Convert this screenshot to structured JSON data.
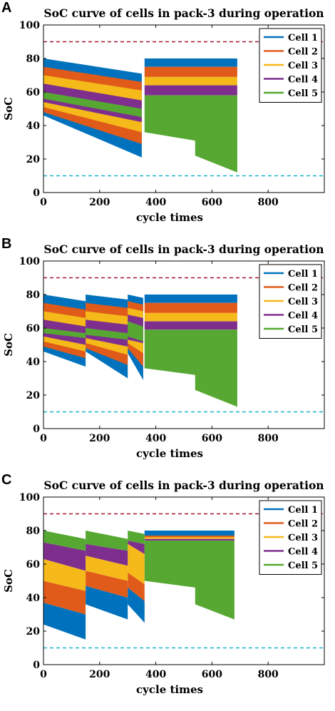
{
  "chart_data": [
    {
      "panel": "A",
      "type": "area",
      "title": "SoC curve of cells in pack-3 during operation",
      "xlabel": "cycle times",
      "ylabel": "SoC",
      "xlim": [
        0,
        1000
      ],
      "ylim": [
        0,
        100
      ],
      "xticks": [
        0,
        200,
        400,
        600,
        800
      ],
      "yticks": [
        0,
        20,
        40,
        60,
        80,
        100
      ],
      "reference_lines": [
        {
          "y": 90,
          "color": "#a2142f",
          "style": "dashed"
        },
        {
          "y": 10,
          "color": "#18b4c8",
          "style": "dashed"
        }
      ],
      "legend_position": "top-right",
      "series": [
        {
          "name": "Cell 1",
          "color": "#0072bd",
          "segments": [
            {
              "x0": 0,
              "x1": 350,
              "upper": [
                80,
                71
              ],
              "lower": [
                46,
                21
              ]
            },
            {
              "x0": 360,
              "x1": 690,
              "upper": [
                80,
                80
              ],
              "lower": [
                75,
                75
              ]
            }
          ]
        },
        {
          "name": "Cell 2",
          "color": "#e05b1a",
          "segments": [
            {
              "x0": 0,
              "x1": 350,
              "upper": [
                75,
                66
              ],
              "lower": [
                48,
                29
              ]
            },
            {
              "x0": 360,
              "x1": 690,
              "upper": [
                75,
                75
              ],
              "lower": [
                69,
                69
              ]
            }
          ]
        },
        {
          "name": "Cell 3",
          "color": "#f5b91a",
          "segments": [
            {
              "x0": 0,
              "x1": 350,
              "upper": [
                70,
                61
              ],
              "lower": [
                51,
                36
              ]
            },
            {
              "x0": 360,
              "x1": 690,
              "upper": [
                69,
                69
              ],
              "lower": [
                64,
                64
              ]
            }
          ]
        },
        {
          "name": "Cell 4",
          "color": "#7e2f8e",
          "segments": [
            {
              "x0": 0,
              "x1": 350,
              "upper": [
                65,
                55
              ],
              "lower": [
                54,
                42
              ]
            },
            {
              "x0": 360,
              "x1": 690,
              "upper": [
                64,
                64
              ],
              "lower": [
                58,
                58
              ]
            }
          ]
        },
        {
          "name": "Cell 5",
          "color": "#56a832",
          "segments": [
            {
              "x0": 0,
              "x1": 350,
              "upper": [
                60,
                50
              ],
              "lower": [
                56,
                45
              ]
            },
            {
              "x0": 360,
              "x1": 690,
              "upper": [
                58,
                58
              ],
              "lower": [
                36,
                12
              ],
              "lower_points": [
                [
                  360,
                  36
                ],
                [
                  540,
                  31
                ],
                [
                  540,
                  22
                ],
                [
                  690,
                  12
                ]
              ]
            }
          ]
        }
      ]
    },
    {
      "panel": "B",
      "type": "area",
      "title": "SoC curve of cells in pack-3 during operation",
      "xlabel": "cycle times",
      "ylabel": "SoC",
      "xlim": [
        0,
        1000
      ],
      "ylim": [
        0,
        100
      ],
      "xticks": [
        0,
        200,
        400,
        600,
        800
      ],
      "yticks": [
        0,
        20,
        40,
        60,
        80,
        100
      ],
      "reference_lines": [
        {
          "y": 90,
          "color": "#a2142f",
          "style": "dashed"
        },
        {
          "y": 10,
          "color": "#18b4c8",
          "style": "dashed"
        }
      ],
      "legend_position": "top-right",
      "series": [
        {
          "name": "Cell 1",
          "color": "#0072bd",
          "segments": [
            {
              "x0": 0,
              "x1": 150,
              "upper": [
                80,
                76
              ],
              "lower": [
                46,
                37
              ]
            },
            {
              "x0": 150,
              "x1": 300,
              "upper": [
                80,
                77
              ],
              "lower": [
                46,
                30
              ]
            },
            {
              "x0": 300,
              "x1": 355,
              "upper": [
                80,
                78
              ],
              "lower": [
                45,
                29
              ]
            },
            {
              "x0": 360,
              "x1": 690,
              "upper": [
                80,
                80
              ],
              "lower": [
                75,
                75
              ]
            }
          ]
        },
        {
          "name": "Cell 2",
          "color": "#e05b1a",
          "segments": [
            {
              "x0": 0,
              "x1": 150,
              "upper": [
                75,
                71
              ],
              "lower": [
                49,
                42
              ]
            },
            {
              "x0": 150,
              "x1": 300,
              "upper": [
                75,
                72
              ],
              "lower": [
                48,
                38
              ]
            },
            {
              "x0": 300,
              "x1": 355,
              "upper": [
                76,
                74
              ],
              "lower": [
                48,
                37
              ]
            },
            {
              "x0": 360,
              "x1": 690,
              "upper": [
                75,
                75
              ],
              "lower": [
                69,
                69
              ]
            }
          ]
        },
        {
          "name": "Cell 3",
          "color": "#f5b91a",
          "segments": [
            {
              "x0": 0,
              "x1": 150,
              "upper": [
                70,
                66
              ],
              "lower": [
                52,
                46
              ]
            },
            {
              "x0": 150,
              "x1": 300,
              "upper": [
                70,
                67
              ],
              "lower": [
                51,
                44
              ]
            },
            {
              "x0": 300,
              "x1": 355,
              "upper": [
                72,
                70
              ],
              "lower": [
                51,
                45
              ]
            },
            {
              "x0": 360,
              "x1": 690,
              "upper": [
                69,
                69
              ],
              "lower": [
                64,
                64
              ]
            }
          ]
        },
        {
          "name": "Cell 4",
          "color": "#7e2f8e",
          "segments": [
            {
              "x0": 0,
              "x1": 150,
              "upper": [
                65,
                61
              ],
              "lower": [
                55,
                50
              ]
            },
            {
              "x0": 150,
              "x1": 300,
              "upper": [
                65,
                62
              ],
              "lower": [
                54,
                49
              ]
            },
            {
              "x0": 300,
              "x1": 355,
              "upper": [
                68,
                66
              ],
              "lower": [
                53,
                51
              ]
            },
            {
              "x0": 360,
              "x1": 690,
              "upper": [
                64,
                64
              ],
              "lower": [
                59,
                59
              ]
            }
          ]
        },
        {
          "name": "Cell 5",
          "color": "#56a832",
          "segments": [
            {
              "x0": 0,
              "x1": 150,
              "upper": [
                60,
                57
              ],
              "lower": [
                57,
                54
              ]
            },
            {
              "x0": 150,
              "x1": 300,
              "upper": [
                60,
                57
              ],
              "lower": [
                56,
                53
              ]
            },
            {
              "x0": 300,
              "x1": 355,
              "upper": [
                64,
                61
              ],
              "lower": [
                55,
                52
              ]
            },
            {
              "x0": 360,
              "x1": 690,
              "upper": [
                59,
                59
              ],
              "lower": [
                36,
                13
              ],
              "lower_points": [
                [
                  360,
                  36
                ],
                [
                  540,
                  32
                ],
                [
                  540,
                  23
                ],
                [
                  690,
                  13
                ]
              ]
            }
          ]
        }
      ]
    },
    {
      "panel": "C",
      "type": "area",
      "title": "SoC curve of cells in pack-3 during operation",
      "xlabel": "cycle times",
      "ylabel": "SoC",
      "xlim": [
        0,
        1000
      ],
      "ylim": [
        0,
        100
      ],
      "xticks": [
        0,
        200,
        400,
        600,
        800
      ],
      "yticks": [
        0,
        20,
        40,
        60,
        80,
        100
      ],
      "reference_lines": [
        {
          "y": 90,
          "color": "#a2142f",
          "style": "dashed"
        },
        {
          "y": 10,
          "color": "#18b4c8",
          "style": "dashed"
        }
      ],
      "legend_position": "top-right",
      "series": [
        {
          "name": "Cell 1",
          "color": "#0072bd",
          "segments": [
            {
              "x0": 0,
              "x1": 150,
              "upper": [
                37,
                30
              ],
              "lower": [
                24,
                15
              ]
            },
            {
              "x0": 150,
              "x1": 300,
              "upper": [
                47,
                40
              ],
              "lower": [
                36,
                27
              ]
            },
            {
              "x0": 300,
              "x1": 360,
              "upper": [
                46,
                38
              ],
              "lower": [
                36,
                25
              ]
            },
            {
              "x0": 360,
              "x1": 680,
              "upper": [
                80,
                80
              ],
              "lower": [
                77,
                77
              ]
            }
          ]
        },
        {
          "name": "Cell 2",
          "color": "#e05b1a",
          "segments": [
            {
              "x0": 0,
              "x1": 150,
              "upper": [
                50,
                44
              ],
              "lower": [
                37,
                30
              ]
            },
            {
              "x0": 150,
              "x1": 300,
              "upper": [
                56,
                50
              ],
              "lower": [
                47,
                40
              ]
            },
            {
              "x0": 300,
              "x1": 360,
              "upper": [
                55,
                48
              ],
              "lower": [
                46,
                38
              ]
            },
            {
              "x0": 360,
              "x1": 680,
              "upper": [
                77,
                77
              ],
              "lower": [
                76,
                76
              ]
            }
          ]
        },
        {
          "name": "Cell 3",
          "color": "#f5b91a",
          "segments": [
            {
              "x0": 0,
              "x1": 150,
              "upper": [
                63,
                56
              ],
              "lower": [
                50,
                44
              ]
            },
            {
              "x0": 150,
              "x1": 300,
              "upper": [
                65,
                59
              ],
              "lower": [
                56,
                50
              ]
            },
            {
              "x0": 300,
              "x1": 360,
              "upper": [
                72,
                66
              ],
              "lower": [
                55,
                48
              ]
            },
            {
              "x0": 360,
              "x1": 680,
              "upper": [
                76,
                76
              ],
              "lower": [
                75,
                75
              ]
            }
          ]
        },
        {
          "name": "Cell 4",
          "color": "#7e2f8e",
          "segments": [
            {
              "x0": 0,
              "x1": 150,
              "upper": [
                73,
                68
              ],
              "lower": [
                63,
                56
              ]
            },
            {
              "x0": 150,
              "x1": 300,
              "upper": [
                72,
                68
              ],
              "lower": [
                65,
                59
              ]
            },
            {
              "x0": 300,
              "x1": 360,
              "upper": [
                74,
                72
              ],
              "lower": [
                72,
                66
              ]
            },
            {
              "x0": 360,
              "x1": 680,
              "upper": [
                75,
                75
              ],
              "lower": [
                74,
                74
              ]
            }
          ]
        },
        {
          "name": "Cell 5",
          "color": "#56a832",
          "segments": [
            {
              "x0": 0,
              "x1": 150,
              "upper": [
                80,
                75
              ],
              "lower": [
                73,
                68
              ]
            },
            {
              "x0": 150,
              "x1": 300,
              "upper": [
                80,
                75
              ],
              "lower": [
                72,
                68
              ]
            },
            {
              "x0": 300,
              "x1": 360,
              "upper": [
                80,
                78
              ],
              "lower": [
                74,
                72
              ]
            },
            {
              "x0": 360,
              "x1": 680,
              "upper": [
                74,
                74
              ],
              "lower": [
                50,
                27
              ],
              "lower_points": [
                [
                  360,
                  50
                ],
                [
                  540,
                  46
                ],
                [
                  540,
                  36
                ],
                [
                  680,
                  27
                ]
              ]
            }
          ]
        }
      ]
    }
  ]
}
